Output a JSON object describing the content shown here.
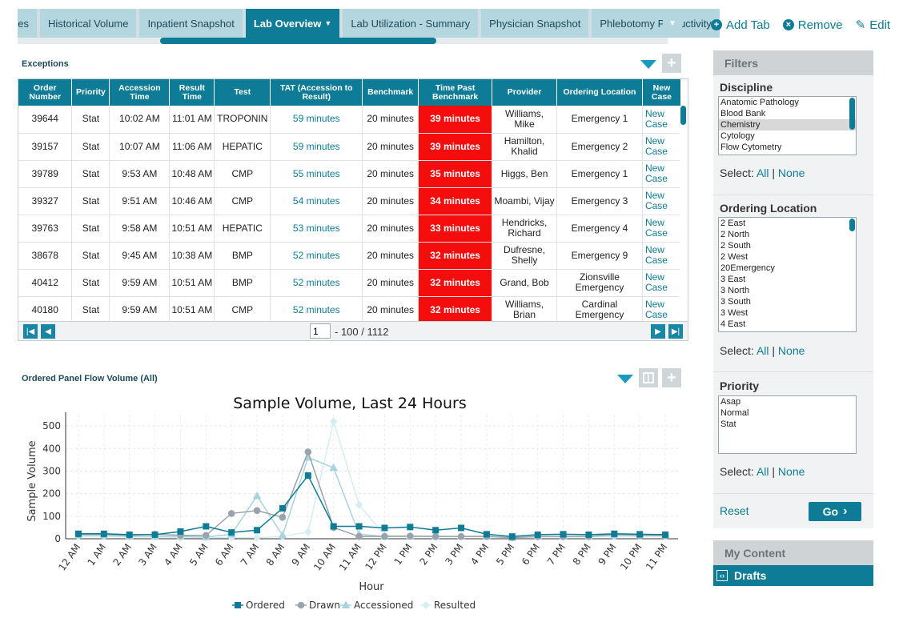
{
  "tabs": [
    {
      "label": "ses",
      "active": false
    },
    {
      "label": "Historical Volume",
      "active": false
    },
    {
      "label": "Inpatient Snapshot",
      "active": false
    },
    {
      "label": "Lab Overview",
      "active": true
    },
    {
      "label": "Lab Utilization - Summary",
      "active": false
    },
    {
      "label": "Physician Snapshot",
      "active": false
    },
    {
      "label": "Phlebotomy Productivity",
      "active": false
    }
  ],
  "tab_actions": {
    "add": "Add Tab",
    "remove": "Remove",
    "edit": "Edit"
  },
  "exceptions": {
    "title": "Exceptions",
    "columns": [
      "Order Number",
      "Priority",
      "Accession Time",
      "Result Time",
      "Test",
      "TAT (Accession to Result)",
      "Benchmark",
      "Time Past Benchmark",
      "Provider",
      "Ordering Location",
      "New Case"
    ],
    "rows": [
      {
        "order": "39644",
        "priority": "Stat",
        "accession": "10:02 AM",
        "result": "11:01 AM",
        "test": "TROPONIN",
        "tat": "59 minutes",
        "benchmark": "20 minutes",
        "past": "39 minutes",
        "provider": "Williams, Mike",
        "location": "Emergency 1",
        "newcase": "New Case"
      },
      {
        "order": "39157",
        "priority": "Stat",
        "accession": "10:07 AM",
        "result": "11:06 AM",
        "test": "HEPATIC",
        "tat": "59 minutes",
        "benchmark": "20 minutes",
        "past": "39 minutes",
        "provider": "Hamilton, Khalid",
        "location": "Emergency 2",
        "newcase": "New Case"
      },
      {
        "order": "39789",
        "priority": "Stat",
        "accession": "9:53 AM",
        "result": "10:48 AM",
        "test": "CMP",
        "tat": "55 minutes",
        "benchmark": "20 minutes",
        "past": "35 minutes",
        "provider": "Higgs, Ben",
        "location": "Emergency 1",
        "newcase": "New Case"
      },
      {
        "order": "39327",
        "priority": "Stat",
        "accession": "9:51 AM",
        "result": "10:46 AM",
        "test": "CMP",
        "tat": "54 minutes",
        "benchmark": "20 minutes",
        "past": "34 minutes",
        "provider": "Moambi, Vijay",
        "location": "Emergency 3",
        "newcase": "New Case"
      },
      {
        "order": "39763",
        "priority": "Stat",
        "accession": "9:58 AM",
        "result": "10:51 AM",
        "test": "HEPATIC",
        "tat": "53 minutes",
        "benchmark": "20 minutes",
        "past": "33 minutes",
        "provider": "Hendricks, Richard",
        "location": "Emergency 4",
        "newcase": "New Case"
      },
      {
        "order": "38678",
        "priority": "Stat",
        "accession": "9:45 AM",
        "result": "10:38 AM",
        "test": "BMP",
        "tat": "52 minutes",
        "benchmark": "20 minutes",
        "past": "32 minutes",
        "provider": "Dufresne, Shelly",
        "location": "Emergency 9",
        "newcase": "New Case"
      },
      {
        "order": "40412",
        "priority": "Stat",
        "accession": "9:59 AM",
        "result": "10:51 AM",
        "test": "BMP",
        "tat": "52 minutes",
        "benchmark": "20 minutes",
        "past": "32 minutes",
        "provider": "Grand, Bob",
        "location": "Zionsville Emergency",
        "newcase": "New Case"
      },
      {
        "order": "40180",
        "priority": "Stat",
        "accession": "9:59 AM",
        "result": "10:51 AM",
        "test": "CMP",
        "tat": "52 minutes",
        "benchmark": "20 minutes",
        "past": "32 minutes",
        "provider": "Williams, Brian",
        "location": "Cardinal Emergency",
        "newcase": "New Case"
      }
    ],
    "pager": {
      "page": "1",
      "summary": "- 100 / 1112"
    }
  },
  "panel_flow": {
    "title": "Ordered Panel Flow Volume (All)"
  },
  "chart_data": {
    "type": "line",
    "title": "Sample Volume, Last 24 Hours",
    "xlabel": "Hour",
    "ylabel": "Sample Volume",
    "ylim": [
      0,
      550
    ],
    "yticks": [
      0,
      100,
      200,
      300,
      400,
      500
    ],
    "categories": [
      "12 AM",
      "1 AM",
      "2 AM",
      "3 AM",
      "4 AM",
      "5 AM",
      "6 AM",
      "7 AM",
      "8 AM",
      "9 AM",
      "10 AM",
      "11 AM",
      "12 PM",
      "1 PM",
      "2 PM",
      "3 PM",
      "4 PM",
      "5 PM",
      "6 PM",
      "7 PM",
      "8 PM",
      "9 PM",
      "10 PM",
      "11 PM"
    ],
    "series": [
      {
        "name": "Ordered",
        "color": "#0e7c96",
        "marker": "square",
        "values": [
          22,
          22,
          18,
          18,
          32,
          55,
          28,
          38,
          135,
          280,
          55,
          55,
          48,
          52,
          38,
          48,
          20,
          10,
          18,
          20,
          18,
          22,
          20,
          18
        ]
      },
      {
        "name": "Drawn",
        "color": "#9aa3ab",
        "marker": "circle",
        "values": [
          20,
          20,
          15,
          20,
          15,
          15,
          112,
          125,
          95,
          385,
          50,
          10,
          10,
          12,
          10,
          10,
          10,
          5,
          10,
          10,
          10,
          20,
          15,
          15
        ]
      },
      {
        "name": "Accessioned",
        "color": "#a8d4de",
        "marker": "triangle",
        "values": [
          15,
          15,
          10,
          10,
          10,
          8,
          20,
          190,
          15,
          360,
          315,
          20,
          10,
          10,
          10,
          10,
          10,
          5,
          10,
          10,
          10,
          15,
          15,
          15
        ]
      },
      {
        "name": "Resulted",
        "color": "#d6eef2",
        "marker": "diamond",
        "values": [
          10,
          10,
          8,
          8,
          5,
          5,
          5,
          5,
          10,
          30,
          520,
          150,
          15,
          10,
          10,
          10,
          10,
          5,
          8,
          8,
          8,
          10,
          10,
          10
        ]
      }
    ],
    "legend": "bottom-center",
    "grid": true
  },
  "filters": {
    "title": "Filters",
    "discipline": {
      "label": "Discipline",
      "items": [
        "Anatomic Pathology",
        "Blood Bank",
        "Chemistry",
        "Cytology",
        "Flow Cytometry"
      ],
      "selected": "Chemistry"
    },
    "location": {
      "label": "Ordering Location",
      "items": [
        "2 East",
        "2 North",
        "2 South",
        "2 West",
        "20Emergency",
        "3 East",
        "3 North",
        "3 South",
        "3 West",
        "4 East"
      ]
    },
    "priority": {
      "label": "Priority",
      "items": [
        "Asap",
        "Normal",
        "Stat"
      ]
    },
    "select_label": "Select:",
    "all": "All",
    "sep": "|",
    "none": "None",
    "reset": "Reset",
    "go": "Go"
  },
  "my_content": {
    "title": "My Content",
    "drafts": "Drafts"
  }
}
